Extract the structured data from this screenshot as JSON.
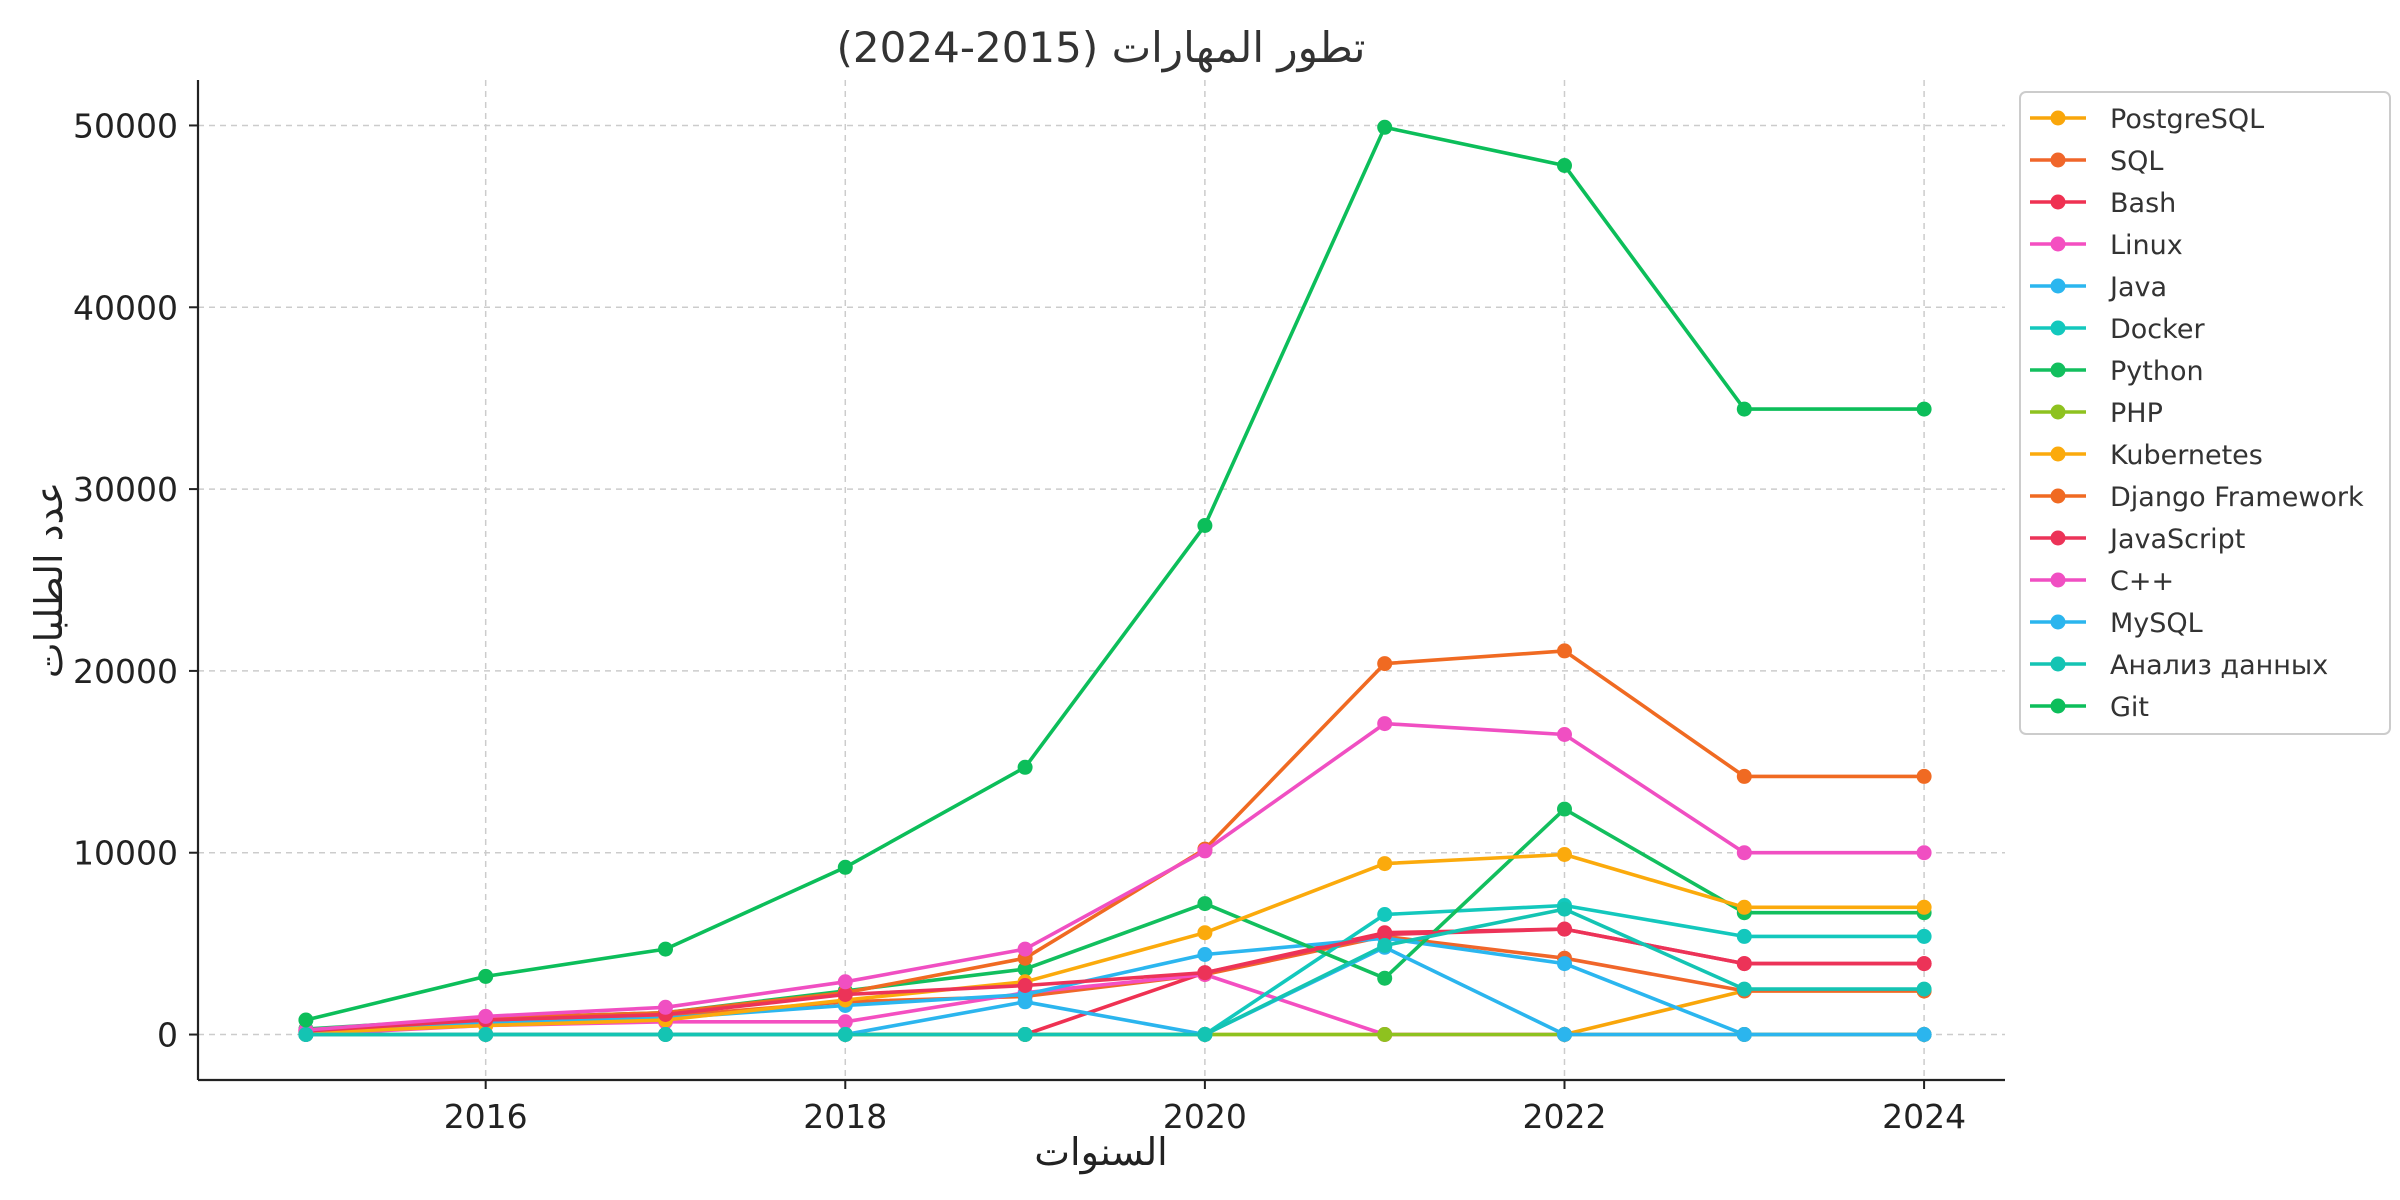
{
  "chart_data": {
    "type": "line",
    "title": "تطور المهارات (2015-2024)",
    "xlabel": "السنوات",
    "ylabel": "عدد الطلبات",
    "x": [
      2015,
      2016,
      2017,
      2018,
      2019,
      2020,
      2021,
      2022,
      2023,
      2024
    ],
    "xlim": [
      2014.4,
      2024.45
    ],
    "ylim": [
      -2500,
      52500
    ],
    "xticks": [
      2016,
      2018,
      2020,
      2022,
      2024
    ],
    "yticks": [
      0,
      10000,
      20000,
      30000,
      40000,
      50000
    ],
    "grid": true,
    "legend_position": "outside-right-top",
    "series": [
      {
        "name": "PostgreSQL",
        "color": "#f9a60a",
        "values": [
          0,
          0,
          0,
          0,
          0,
          0,
          0,
          0,
          2400,
          2400
        ]
      },
      {
        "name": "SQL",
        "color": "#f0662a",
        "values": [
          150,
          750,
          1000,
          1800,
          2100,
          3300,
          5400,
          4200,
          2400,
          2400
        ]
      },
      {
        "name": "Bash",
        "color": "#ef3152",
        "values": [
          0,
          0,
          0,
          0,
          0,
          3400,
          5600,
          5800,
          3900,
          3900
        ]
      },
      {
        "name": "Linux",
        "color": "#f44fc1",
        "values": [
          0,
          500,
          700,
          700,
          2300,
          3300,
          0,
          0,
          0,
          0
        ]
      },
      {
        "name": "Java",
        "color": "#2bb6ef",
        "values": [
          100,
          600,
          900,
          1600,
          2200,
          4400,
          5300,
          3900,
          0,
          0
        ]
      },
      {
        "name": "Docker",
        "color": "#13c8bd",
        "values": [
          0,
          0,
          0,
          0,
          0,
          0,
          6600,
          7100,
          5400,
          5400
        ]
      },
      {
        "name": "Python",
        "color": "#12bf5e",
        "values": [
          300,
          900,
          1200,
          2400,
          3600,
          7200,
          3100,
          12400,
          6700,
          6700
        ]
      },
      {
        "name": "PHP",
        "color": "#8ec21f",
        "values": [
          0,
          0,
          0,
          0,
          0,
          0,
          0,
          0,
          0,
          0
        ]
      },
      {
        "name": "Kubernetes",
        "color": "#fbaa0c",
        "values": [
          100,
          500,
          800,
          1900,
          2900,
          5600,
          9400,
          9900,
          7000,
          7000
        ]
      },
      {
        "name": "Django Framework",
        "color": "#f06a22",
        "values": [
          200,
          900,
          1200,
          2300,
          4200,
          10200,
          20400,
          21100,
          14200,
          14200
        ]
      },
      {
        "name": "JavaScript",
        "color": "#ec3358",
        "values": [
          200,
          800,
          1100,
          2200,
          2700,
          3400,
          5500,
          5800,
          3900,
          3900
        ]
      },
      {
        "name": "C++",
        "color": "#f04fc2",
        "values": [
          250,
          1000,
          1500,
          2900,
          4700,
          10100,
          17100,
          16500,
          10000,
          10000
        ]
      },
      {
        "name": "MySQL",
        "color": "#2bb5ee",
        "values": [
          0,
          0,
          0,
          0,
          1800,
          0,
          4800,
          0,
          0,
          0
        ]
      },
      {
        "name": "Анализ данных",
        "color": "#14c4b3",
        "values": [
          0,
          0,
          0,
          0,
          0,
          0,
          4900,
          6900,
          2500,
          2500
        ]
      },
      {
        "name": "Git",
        "color": "#0cbe5a",
        "values": [
          800,
          3200,
          4700,
          9200,
          14700,
          28000,
          49900,
          47800,
          34400,
          34400
        ]
      }
    ]
  }
}
